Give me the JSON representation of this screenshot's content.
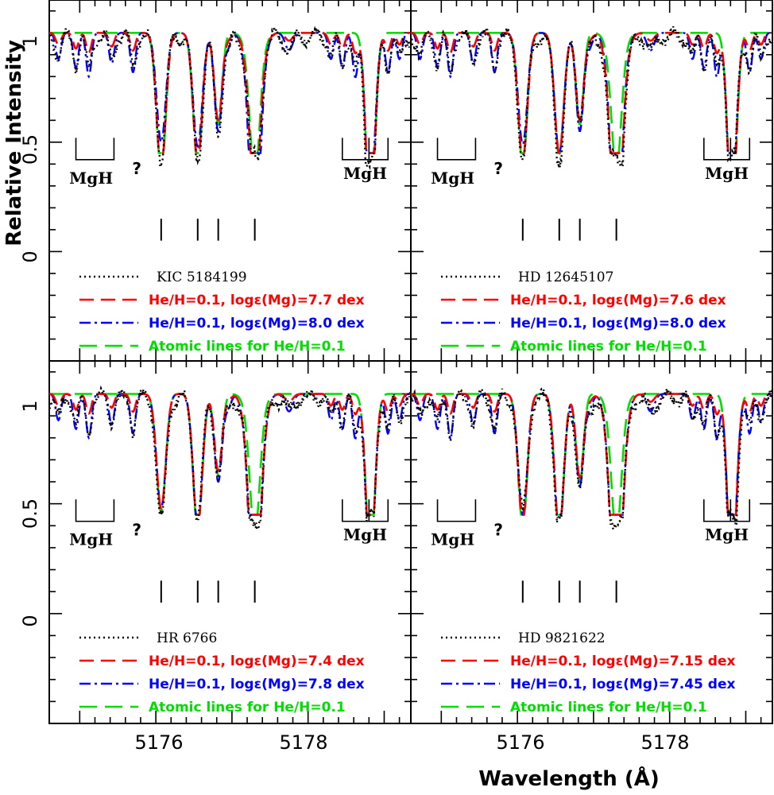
{
  "colors": {
    "observed": "#000000",
    "model_low": "#ff0000",
    "model_high": "#0000ff",
    "atomic": "#00dd00"
  },
  "axes": {
    "xlabel": "Wavelength (Å)",
    "ylabel": "Relative Intensity",
    "xlim": [
      5174.6,
      5179.35
    ],
    "ylim": [
      -0.5,
      1.15
    ],
    "xticks_major": [
      5176,
      5178
    ],
    "yticks_labeled": [
      "1",
      "0.5",
      "0"
    ],
    "yticks_labeled_values": [
      1,
      0.5,
      0
    ]
  },
  "annotations": {
    "mgh_label": "MgH",
    "unknown_label": "?",
    "mgh_left_band": [
      5174.95,
      5175.45
    ],
    "mgh_right_band": [
      5178.45,
      5178.8,
      5179.05
    ],
    "atomic_line_marks": [
      5176.07,
      5176.55,
      5176.82,
      5177.3
    ]
  },
  "chart_data": [
    {
      "type": "line",
      "panel": "top-left",
      "legend": {
        "observed": "KIC 5184199",
        "model_low": "He/H=0.1, logε(Mg)=7.7 dex",
        "model_high": "He/H=0.1, logε(Mg)=8.0 dex",
        "atomic": "Atomic lines for He/H=0.1"
      },
      "depths": {
        "model_low": [
          0.62,
          0.58,
          0.4,
          0.42,
          0.35,
          0.82
        ],
        "model_high": [
          0.5,
          0.52,
          0.45,
          0.6,
          0.45,
          0.72
        ]
      }
    },
    {
      "type": "line",
      "panel": "top-right",
      "legend": {
        "observed": "HD 12645107",
        "model_low": "He/H=0.1, logε(Mg)=7.6 dex",
        "model_high": "He/H=0.1, logε(Mg)=8.0 dex",
        "atomic": "Atomic lines for He/H=0.1"
      },
      "depths": {
        "model_low": [
          0.58,
          0.55,
          0.4,
          0.38,
          0.6,
          0.78
        ],
        "model_high": [
          0.51,
          0.55,
          0.45,
          0.58,
          0.47,
          0.7
        ]
      }
    },
    {
      "type": "line",
      "panel": "bottom-left",
      "legend": {
        "observed": "HR 6766",
        "model_low": "He/H=0.1, logε(Mg)=7.4 dex",
        "model_high": "He/H=0.1, logε(Mg)=7.8 dex",
        "atomic": "Atomic lines for He/H=0.1"
      },
      "depths": {
        "model_low": [
          0.52,
          0.6,
          0.35,
          0.4,
          0.58,
          0.72
        ],
        "model_high": [
          0.52,
          0.6,
          0.4,
          0.55,
          0.57,
          0.7
        ]
      }
    },
    {
      "type": "line",
      "panel": "bottom-right",
      "legend": {
        "observed": "HD 9821622",
        "model_low": "He/H=0.1, logε(Mg)=7.15 dex",
        "model_high": "He/H=0.1, logε(Mg)=7.45 dex",
        "atomic": "Atomic lines for He/H=0.1"
      },
      "depths": {
        "model_low": [
          0.58,
          0.62,
          0.38,
          0.4,
          0.66,
          0.8
        ],
        "model_high": [
          0.55,
          0.62,
          0.42,
          0.55,
          0.58,
          0.75
        ]
      }
    }
  ],
  "line_centers": [
    5176.07,
    5176.55,
    5176.82,
    5177.3,
    5177.3,
    5178.82
  ]
}
